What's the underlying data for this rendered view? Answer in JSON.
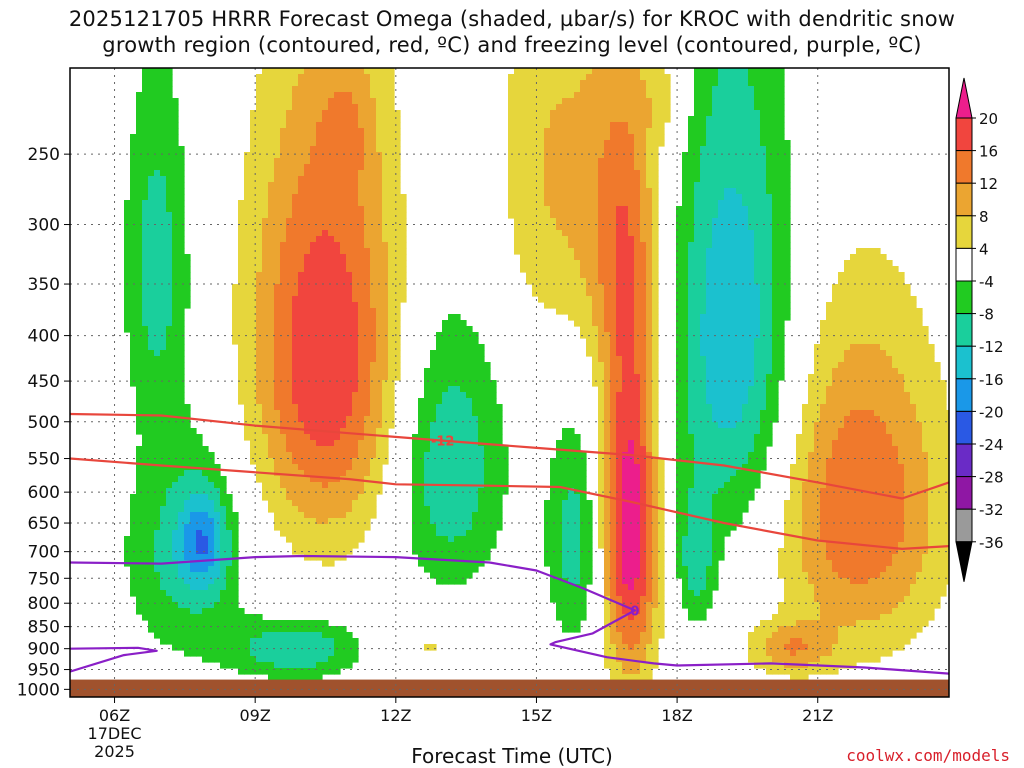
{
  "title_line1": "2025121705 HRRR Forecast Omega (shaded, µbar/s) for KROC with dendritic snow",
  "title_line2": "growth region (contoured, red, ºC) and freezing level (contoured, purple, ºC)",
  "xlabel": "Forecast Time (UTC)",
  "credit": "coolwx.com/models",
  "chart_data": {
    "type": "heatmap",
    "title": "2025121705 HRRR Forecast Omega (shaded, µbar/s) for KROC with dendritic snow growth region (contoured, red, ºC) and freezing level (contoured, purple, ºC)",
    "xlabel": "Forecast Time (UTC)",
    "ylabel": "",
    "x_ticks": [
      {
        "hour": 6,
        "label": "06Z"
      },
      {
        "hour": 9,
        "label": "09Z"
      },
      {
        "hour": 12,
        "label": "12Z"
      },
      {
        "hour": 15,
        "label": "15Z"
      },
      {
        "hour": 18,
        "label": "18Z"
      },
      {
        "hour": 21,
        "label": "21Z"
      }
    ],
    "x_date_label": [
      "17DEC",
      "2025"
    ],
    "xlim_hours": [
      5.05,
      23.8
    ],
    "y_levels_hpa": [
      250,
      300,
      350,
      400,
      450,
      500,
      550,
      600,
      650,
      700,
      750,
      800,
      850,
      900,
      950,
      1000
    ],
    "ylim_hpa": [
      200,
      1020
    ],
    "y_scale": "log",
    "grid": true,
    "surface_pressure_hpa": 975,
    "colorbar_levels": [
      "20",
      "16",
      "12",
      "8",
      "4",
      "-4",
      "-8",
      "-12",
      "-16",
      "-20",
      "-24",
      "-28",
      "-32",
      "-36"
    ],
    "colorbar_colors": [
      "#ec1e8c",
      "#f1453e",
      "#f0792c",
      "#eba531",
      "#e6d63c",
      "#ffffff",
      "#21cb21",
      "#1acf9c",
      "#1bc1cf",
      "#1a98e8",
      "#2a59e4",
      "#6a2bc6",
      "#8f17a4",
      "#9a9a9a",
      "#000000"
    ],
    "omega_features": [
      {
        "t": 6.9,
        "p": 330,
        "rt": 0.7,
        "rp": 150,
        "value": -10
      },
      {
        "t": 7.5,
        "p": 700,
        "rt": 1.3,
        "rp": 200,
        "value": -10
      },
      {
        "t": 7.9,
        "p": 680,
        "rt": 0.5,
        "rp": 90,
        "value": -12
      },
      {
        "t": 10.5,
        "p": 420,
        "rt": 1.6,
        "rp": 240,
        "value": 20
      },
      {
        "t": 9.9,
        "p": 900,
        "rt": 1.4,
        "rp": 70,
        "value": -12
      },
      {
        "t": 13.1,
        "p": 560,
        "rt": 1.2,
        "rp": 200,
        "value": -12
      },
      {
        "t": 12.7,
        "p": 890,
        "rt": 1.0,
        "rp": 60,
        "value": 5
      },
      {
        "t": 15.3,
        "p": 260,
        "rt": 1.2,
        "rp": 140,
        "value": 8
      },
      {
        "t": 15.8,
        "p": 680,
        "rt": 0.6,
        "rp": 200,
        "value": -10
      },
      {
        "t": 16.8,
        "p": 300,
        "rt": 0.9,
        "rp": 140,
        "value": 10
      },
      {
        "t": 17.0,
        "p": 650,
        "rt": 0.6,
        "rp": 300,
        "value": 24
      },
      {
        "t": 19.2,
        "p": 400,
        "rt": 1.3,
        "rp": 250,
        "value": -16
      },
      {
        "t": 18.4,
        "p": 720,
        "rt": 0.4,
        "rp": 120,
        "value": -10
      },
      {
        "t": 21.9,
        "p": 620,
        "rt": 1.8,
        "rp": 260,
        "value": 16
      },
      {
        "t": 20.4,
        "p": 900,
        "rt": 0.9,
        "rp": 60,
        "value": 10
      },
      {
        "t": 11.0,
        "p": 230,
        "rt": 0.6,
        "rp": 40,
        "value": 4
      },
      {
        "t": 17.8,
        "p": 215,
        "rt": 0.5,
        "rp": 30,
        "value": 5
      }
    ],
    "dgz_lines": [
      {
        "name": "-12",
        "points": [
          [
            5.05,
            490
          ],
          [
            7,
            492
          ],
          [
            9,
            505
          ],
          [
            11,
            515
          ],
          [
            13,
            525
          ],
          [
            15,
            535
          ],
          [
            17,
            545
          ],
          [
            19,
            560
          ],
          [
            21,
            585
          ],
          [
            22.8,
            610
          ],
          [
            23.8,
            585
          ]
        ]
      },
      {
        "name": "",
        "points": [
          [
            5.05,
            550
          ],
          [
            7,
            560
          ],
          [
            9,
            570
          ],
          [
            11,
            580
          ],
          [
            12,
            588
          ],
          [
            14,
            590
          ],
          [
            15.5,
            592
          ],
          [
            17,
            615
          ],
          [
            19,
            650
          ],
          [
            21,
            680
          ],
          [
            22.8,
            695
          ],
          [
            23.8,
            690
          ]
        ]
      }
    ],
    "freezing_lines": [
      {
        "name": "0",
        "points": [
          [
            5.05,
            720
          ],
          [
            7,
            722
          ],
          [
            9,
            710
          ],
          [
            10,
            708
          ],
          [
            12,
            710
          ],
          [
            14,
            720
          ],
          [
            15,
            735
          ],
          [
            16,
            770
          ],
          [
            17.1,
            815
          ],
          [
            16.2,
            865
          ],
          [
            15.4,
            885
          ],
          [
            15.3,
            890
          ],
          [
            16.5,
            920
          ],
          [
            17.5,
            935
          ],
          [
            18,
            940
          ],
          [
            20,
            935
          ],
          [
            22,
            945
          ],
          [
            23.8,
            960
          ]
        ]
      },
      {
        "name": "",
        "points": [
          [
            5.05,
            900
          ],
          [
            6.5,
            898
          ],
          [
            6.9,
            905
          ],
          [
            6.2,
            915
          ],
          [
            5.05,
            955
          ]
        ]
      }
    ]
  }
}
